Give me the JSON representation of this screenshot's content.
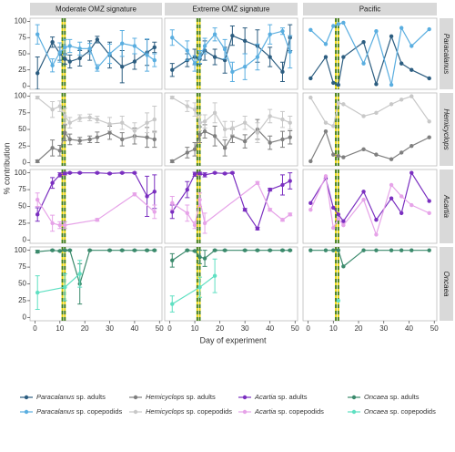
{
  "chart_data": {
    "type": "line",
    "xlabel": "Day of experiment",
    "ylabel": "% contribution",
    "columns": [
      "Moderate OMZ signature",
      "Extreme OMZ signature",
      "Pacific"
    ],
    "rows": [
      "Paracalanus",
      "Hemicyclops",
      "Acartia",
      "Oncaea"
    ],
    "xlim": [
      -2,
      51
    ],
    "xticks": [
      0,
      10,
      20,
      30,
      40,
      50
    ],
    "ylim": [
      -5,
      105
    ],
    "yticks": [
      0,
      25,
      50,
      75,
      100
    ],
    "vlines": [
      11,
      12
    ],
    "series": [
      {
        "name": "Paracalanus sp. adults",
        "color": "#2c5d80",
        "facets": [
          {
            "x": [
              1,
              7,
              10,
              12,
              14,
              18,
              22,
              25,
              30,
              35,
              40,
              45,
              48
            ],
            "values": [
              20,
              68,
              50,
              42,
              38,
              43,
              55,
              72,
              48,
              30,
              38,
              52,
              60
            ],
            "errors": [
              25,
              8,
              10,
              8,
              10,
              12,
              15,
              5,
              20,
              25,
              12,
              20,
              8
            ]
          },
          {
            "x": [
              1,
              7,
              10,
              12,
              14,
              18,
              22,
              25,
              30,
              35,
              40,
              45,
              48
            ],
            "values": [
              25,
              40,
              45,
              42,
              55,
              45,
              40,
              78,
              70,
              62,
              45,
              22,
              75
            ],
            "errors": [
              10,
              10,
              12,
              8,
              15,
              12,
              20,
              15,
              20,
              25,
              15,
              15,
              20
            ]
          },
          {
            "x": [
              1,
              7,
              10,
              12,
              14,
              22,
              27,
              33,
              37,
              41,
              48
            ],
            "values": [
              12,
              45,
              5,
              2,
              45,
              68,
              3,
              77,
              35,
              25,
              12
            ]
          }
        ]
      },
      {
        "name": "Paracalanus sp. copepodids",
        "color": "#5aaee0",
        "facets": [
          {
            "x": [
              1,
              7,
              10,
              12,
              14,
              18,
              22,
              25,
              30,
              35,
              40,
              45,
              48
            ],
            "values": [
              80,
              32,
              52,
              60,
              62,
              58,
              58,
              28,
              50,
              66,
              62,
              48,
              40
            ],
            "errors": [
              15,
              10,
              15,
              12,
              10,
              10,
              8,
              5,
              15,
              20,
              12,
              25,
              10
            ]
          },
          {
            "x": [
              1,
              7,
              10,
              12,
              14,
              18,
              22,
              25,
              30,
              35,
              40,
              45,
              48
            ],
            "values": [
              75,
              55,
              35,
              45,
              62,
              80,
              57,
              22,
              30,
              45,
              80,
              85,
              53
            ],
            "errors": [
              12,
              15,
              12,
              10,
              12,
              10,
              15,
              15,
              20,
              20,
              15,
              5,
              25
            ]
          },
          {
            "x": [
              1,
              7,
              10,
              12,
              14,
              22,
              27,
              33,
              37,
              41,
              48
            ],
            "values": [
              87,
              65,
              93,
              96,
              98,
              35,
              85,
              2,
              90,
              62,
              88
            ]
          }
        ]
      },
      {
        "name": "Hemicyclops sp. adults",
        "color": "#7f7f7f",
        "facets": [
          {
            "x": [
              1,
              7,
              10,
              12,
              14,
              18,
              22,
              25,
              30,
              35,
              40,
              45,
              48
            ],
            "values": [
              2,
              22,
              18,
              45,
              35,
              33,
              35,
              38,
              45,
              35,
              40,
              38,
              35
            ],
            "errors": [
              2,
              12,
              8,
              12,
              8,
              5,
              5,
              8,
              10,
              10,
              12,
              15,
              12
            ]
          },
          {
            "x": [
              1,
              7,
              10,
              12,
              14,
              18,
              22,
              25,
              30,
              35,
              40,
              45,
              48
            ],
            "values": [
              2,
              15,
              20,
              42,
              47,
              40,
              22,
              40,
              32,
              50,
              30,
              35,
              38
            ],
            "errors": [
              2,
              8,
              10,
              12,
              10,
              15,
              12,
              10,
              10,
              15,
              10,
              12,
              10
            ]
          },
          {
            "x": [
              1,
              7,
              10,
              12,
              14,
              22,
              27,
              33,
              37,
              41,
              48
            ],
            "values": [
              2,
              47,
              12,
              10,
              8,
              20,
              12,
              5,
              15,
              25,
              38
            ]
          }
        ]
      },
      {
        "name": "Hemicyclops sp. copepodids",
        "color": "#c8c8c8",
        "facets": [
          {
            "x": [
              1,
              7,
              10,
              12,
              14,
              18,
              22,
              25,
              30,
              35,
              40,
              45,
              48
            ],
            "values": [
              98,
              80,
              85,
              70,
              60,
              67,
              68,
              65,
              58,
              60,
              48,
              60,
              65
            ],
            "errors": [
              2,
              12,
              8,
              12,
              8,
              5,
              5,
              5,
              10,
              10,
              12,
              15,
              20
            ]
          },
          {
            "x": [
              1,
              7,
              10,
              12,
              14,
              18,
              22,
              25,
              30,
              35,
              40,
              45,
              48
            ],
            "values": [
              98,
              85,
              80,
              60,
              62,
              75,
              50,
              52,
              60,
              45,
              70,
              65,
              60
            ],
            "errors": [
              2,
              8,
              10,
              12,
              10,
              15,
              12,
              10,
              10,
              15,
              10,
              12,
              10
            ]
          },
          {
            "x": [
              1,
              7,
              10,
              12,
              14,
              22,
              27,
              33,
              37,
              41,
              48
            ],
            "values": [
              98,
              60,
              55,
              90,
              88,
              70,
              75,
              88,
              95,
              100,
              62
            ]
          }
        ]
      },
      {
        "name": "Acartia sp. adults",
        "color": "#7a2fc0",
        "facets": [
          {
            "x": [
              1,
              7,
              10,
              12,
              14,
              18,
              25,
              30,
              35,
              40,
              45,
              48
            ],
            "values": [
              38,
              85,
              97,
              99,
              100,
              100,
              100,
              99,
              100,
              100,
              65,
              72
            ],
            "errors": [
              10,
              8,
              3,
              2,
              1,
              1,
              1,
              1,
              1,
              1,
              30,
              25
            ]
          },
          {
            "x": [
              1,
              7,
              10,
              12,
              14,
              18,
              22,
              25,
              30,
              35,
              40,
              45,
              48
            ],
            "values": [
              42,
              75,
              98,
              99,
              97,
              100,
              99,
              100,
              45,
              17,
              75,
              82,
              88
            ],
            "errors": [
              10,
              12,
              3,
              2,
              3,
              1,
              1,
              1,
              2,
              2,
              2,
              15,
              12
            ]
          },
          {
            "x": [
              1,
              7,
              10,
              12,
              14,
              22,
              27,
              33,
              37,
              41,
              48
            ],
            "values": [
              55,
              92,
              48,
              38,
              28,
              72,
              30,
              62,
              40,
              100,
              58
            ]
          }
        ]
      },
      {
        "name": "Acartia sp. copepodids",
        "color": "#e6a3e8",
        "facets": [
          {
            "x": [
              1,
              7,
              10,
              12,
              25,
              40,
              48
            ],
            "values": [
              60,
              25,
              22,
              22,
              30,
              68,
              42
            ],
            "errors": [
              10,
              12,
              5,
              5,
              2,
              2,
              10
            ]
          },
          {
            "x": [
              1,
              7,
              10,
              12,
              14,
              35,
              40,
              45,
              48
            ],
            "values": [
              55,
              40,
              22,
              60,
              25,
              85,
              45,
              30,
              38
            ],
            "errors": [
              10,
              12,
              5,
              10,
              15,
              2,
              2,
              2,
              2
            ]
          },
          {
            "x": [
              1,
              7,
              10,
              12,
              14,
              22,
              27,
              33,
              37,
              41,
              48
            ],
            "values": [
              45,
              95,
              18,
              32,
              22,
              60,
              8,
              82,
              65,
              52,
              40
            ]
          }
        ]
      },
      {
        "name": "Oncaea sp. adults",
        "color": "#3b8a6c",
        "facets": [
          {
            "x": [
              1,
              7,
              10,
              12,
              14,
              18,
              22,
              30,
              35,
              40,
              45,
              48
            ],
            "values": [
              98,
              100,
              99,
              100,
              100,
              50,
              100,
              100,
              100,
              100,
              100,
              100
            ],
            "errors": [
              2,
              1,
              1,
              1,
              1,
              30,
              1,
              1,
              1,
              1,
              1,
              1
            ]
          },
          {
            "x": [
              1,
              7,
              10,
              12,
              14,
              18,
              22,
              30,
              35,
              40,
              45,
              48
            ],
            "values": [
              85,
              100,
              99,
              90,
              88,
              100,
              100,
              100,
              100,
              100,
              100,
              100
            ],
            "errors": [
              10,
              1,
              1,
              10,
              12,
              1,
              1,
              1,
              1,
              1,
              1,
              1
            ]
          },
          {
            "x": [
              1,
              7,
              10,
              12,
              14,
              22,
              27,
              33,
              37,
              41,
              48
            ],
            "values": [
              100,
              100,
              100,
              100,
              76,
              100,
              100,
              100,
              100,
              100,
              100
            ]
          }
        ]
      },
      {
        "name": "Oncaea sp. copepodids",
        "color": "#5fe0c2",
        "facets": [
          {
            "x": [
              1,
              12,
              18
            ],
            "values": [
              37,
              45,
              65
            ],
            "errors": [
              25,
              20,
              20
            ]
          },
          {
            "x": [
              1,
              12,
              18
            ],
            "values": [
              20,
              45,
              62
            ],
            "errors": [
              12,
              15,
              25
            ]
          },
          {
            "x": [
              12
            ],
            "values": [
              25
            ]
          }
        ]
      }
    ]
  }
}
